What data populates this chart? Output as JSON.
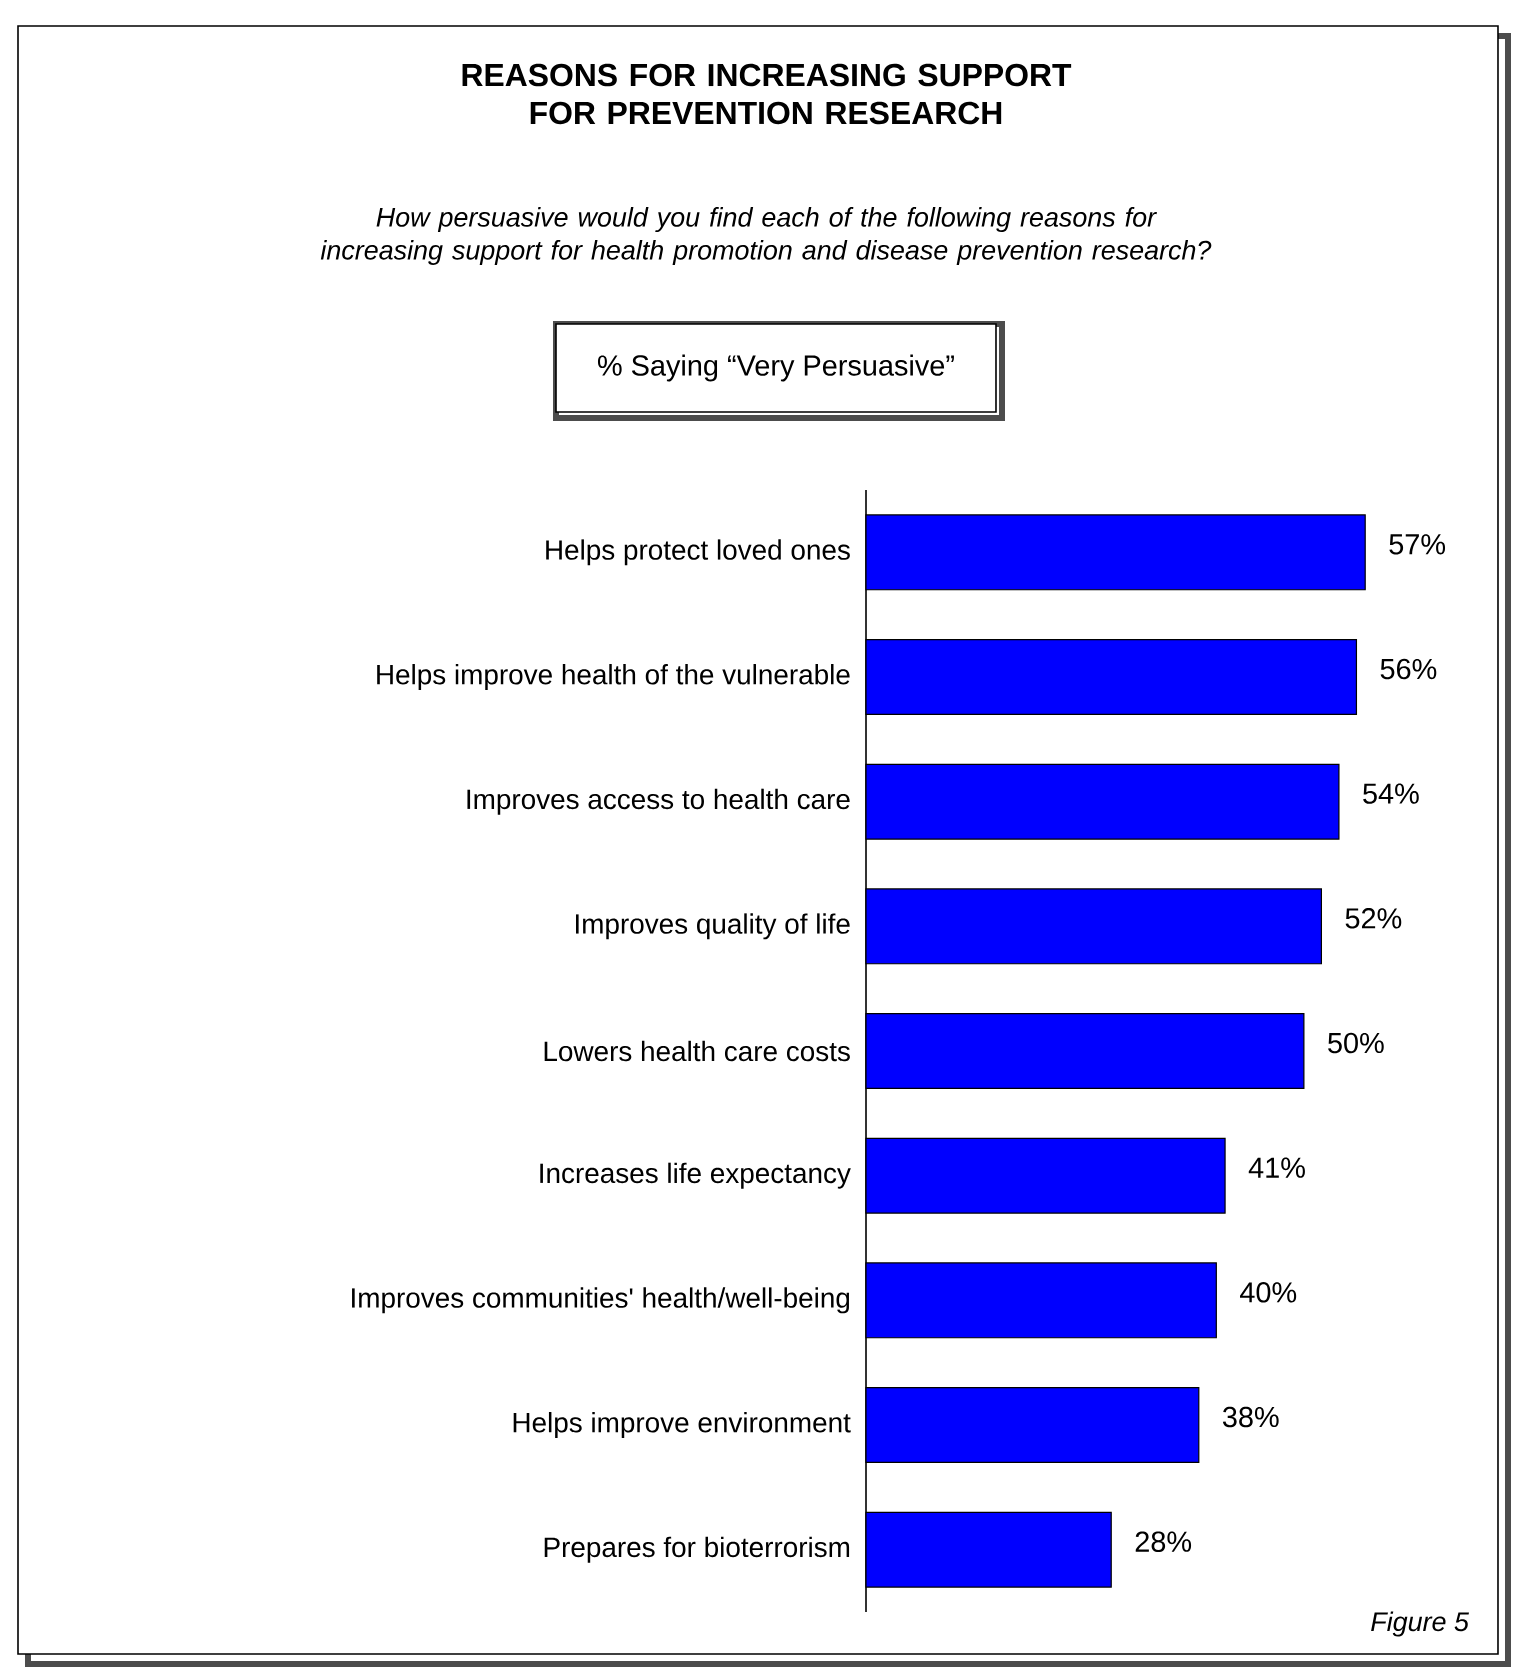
{
  "chart_data": {
    "type": "bar",
    "orientation": "horizontal",
    "title": "REASONS FOR INCREASING SUPPORT FOR PREVENTION RESEARCH",
    "subtitle": "How persuasive would you find each of the following reasons for increasing support for health promotion and disease prevention research?",
    "annotations": [
      "% Saying “Very Persuasive”",
      "Figure 5"
    ],
    "categories": [
      "Helps protect loved ones",
      "Helps improve health of the vulnerable",
      "Improves access to health care",
      "Improves quality of life",
      "Lowers health care costs",
      "Increases life expectancy",
      "Improves communities' health/well-being",
      "Helps improve environment",
      "Prepares for bioterrorism"
    ],
    "values": [
      57,
      56,
      54,
      52,
      50,
      41,
      40,
      38,
      28
    ],
    "value_labels": [
      "57%",
      "56%",
      "54%",
      "52%",
      "50%",
      "41%",
      "40%",
      "38%",
      "28%"
    ],
    "color": "#0000ff"
  }
}
